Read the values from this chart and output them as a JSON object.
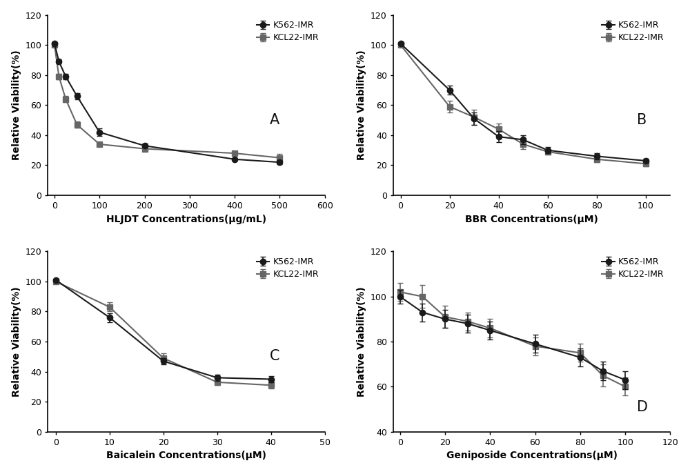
{
  "A": {
    "title": "A",
    "xlabel": "HLJDT Concentrations(μg/mL)",
    "ylabel": "Relative Viability(%)",
    "xlim": [
      -15,
      600
    ],
    "ylim": [
      0,
      120
    ],
    "xticks": [
      0,
      100,
      200,
      300,
      400,
      500,
      600
    ],
    "yticks": [
      0,
      20,
      40,
      60,
      80,
      100,
      120
    ],
    "k562": {
      "x": [
        0,
        10,
        25,
        50,
        100,
        200,
        400,
        500
      ],
      "y": [
        101,
        89,
        79,
        66,
        42,
        33,
        24,
        22
      ],
      "yerr": [
        1.0,
        1.5,
        2.0,
        2.0,
        2.5,
        1.5,
        1.0,
        1.5
      ]
    },
    "kcl22": {
      "x": [
        0,
        10,
        25,
        50,
        100,
        200,
        400,
        500
      ],
      "y": [
        100,
        79,
        64,
        47,
        34,
        31,
        28,
        25
      ],
      "yerr": [
        1.0,
        2.0,
        2.0,
        2.0,
        1.5,
        1.5,
        1.5,
        2.5
      ]
    }
  },
  "B": {
    "title": "B",
    "xlabel": "BBR Concentrations(μM)",
    "ylabel": "Relative Viability(%)",
    "xlim": [
      -3,
      110
    ],
    "ylim": [
      0,
      120
    ],
    "xticks": [
      0,
      20,
      40,
      60,
      80,
      100
    ],
    "yticks": [
      0,
      20,
      40,
      60,
      80,
      100,
      120
    ],
    "k562": {
      "x": [
        0,
        20,
        30,
        40,
        50,
        60,
        80,
        100
      ],
      "y": [
        101,
        70,
        51,
        39,
        37,
        30,
        26,
        23
      ],
      "yerr": [
        1.0,
        3.0,
        4.0,
        3.5,
        3.0,
        2.0,
        2.0,
        1.5
      ]
    },
    "kcl22": {
      "x": [
        0,
        20,
        30,
        40,
        50,
        60,
        80,
        100
      ],
      "y": [
        100,
        59,
        52,
        44,
        34,
        29,
        24,
        21
      ],
      "yerr": [
        1.0,
        4.0,
        5.0,
        4.0,
        3.0,
        2.0,
        2.0,
        1.5
      ]
    }
  },
  "C": {
    "title": "C",
    "xlabel": "Baicalein Concentrations(μM)",
    "ylabel": "Relative Viability(%)",
    "xlim": [
      -1.5,
      50
    ],
    "ylim": [
      0,
      120
    ],
    "xticks": [
      0,
      10,
      20,
      30,
      40,
      50
    ],
    "yticks": [
      0,
      20,
      40,
      60,
      80,
      100,
      120
    ],
    "k562": {
      "x": [
        0,
        10,
        20,
        30,
        40
      ],
      "y": [
        101,
        76,
        47,
        36,
        35
      ],
      "yerr": [
        1.0,
        3.0,
        2.0,
        2.0,
        2.0
      ]
    },
    "kcl22": {
      "x": [
        0,
        10,
        20,
        30,
        40
      ],
      "y": [
        100,
        83,
        49,
        33,
        31
      ],
      "yerr": [
        1.0,
        3.0,
        3.0,
        2.0,
        2.0
      ]
    }
  },
  "D": {
    "title": "D",
    "xlabel": "Geniposide Concentrations(μM)",
    "ylabel": "Relative Viability(%)",
    "xlim": [
      -3,
      120
    ],
    "ylim": [
      40,
      120
    ],
    "xticks": [
      0,
      20,
      40,
      60,
      80,
      100,
      120
    ],
    "yticks": [
      40,
      60,
      80,
      100,
      120
    ],
    "k562": {
      "x": [
        0,
        10,
        20,
        30,
        40,
        60,
        80,
        90,
        100
      ],
      "y": [
        100,
        93,
        90,
        88,
        85,
        79,
        73,
        67,
        63
      ],
      "yerr": [
        3.0,
        4.0,
        4.0,
        4.0,
        4.0,
        4.0,
        4.0,
        4.0,
        4.0
      ]
    },
    "kcl22": {
      "x": [
        0,
        10,
        20,
        30,
        40,
        60,
        80,
        90,
        100
      ],
      "y": [
        102,
        100,
        91,
        89,
        86,
        78,
        75,
        65,
        60
      ],
      "yerr": [
        4.0,
        5.0,
        5.0,
        4.0,
        4.0,
        4.0,
        4.0,
        5.0,
        4.0
      ]
    }
  },
  "line_color_k562": "#1a1a1a",
  "line_color_kcl22": "#666666",
  "marker_k562": "o",
  "marker_kcl22": "s",
  "markersize": 6,
  "linewidth": 1.5,
  "capsize": 3,
  "elinewidth": 1.2,
  "legend_labels": [
    "K562-IMR",
    "KCL22-IMR"
  ],
  "background_color": "#ffffff",
  "label_fontsize": 10,
  "tick_fontsize": 9,
  "legend_fontsize": 9,
  "panel_label_fontsize": 15
}
